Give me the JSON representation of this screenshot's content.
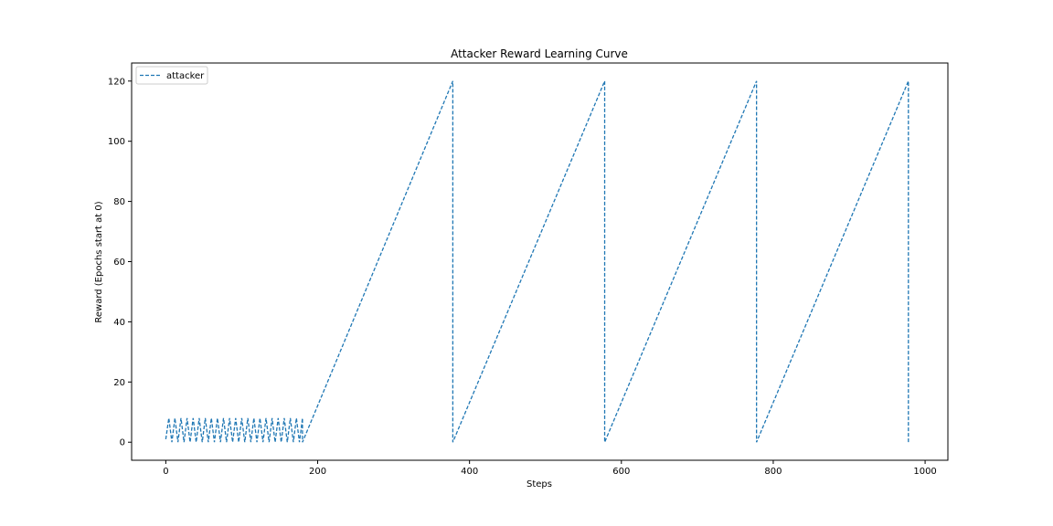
{
  "chart_data": {
    "type": "line",
    "title": "Attacker Reward Learning Curve",
    "xlabel": "Steps",
    "ylabel": "Reward (Epochs start at 0)",
    "xlim": [
      -45,
      1030
    ],
    "ylim": [
      -6,
      126
    ],
    "xticks": [
      0,
      200,
      400,
      600,
      800,
      1000
    ],
    "yticks": [
      0,
      20,
      40,
      60,
      80,
      100,
      120
    ],
    "grid": false,
    "legend": {
      "placement": "top-left"
    },
    "series": [
      {
        "name": "attacker",
        "color": "#1f77b4",
        "linestyle": "dashed",
        "sawtooth_segments": [
          {
            "x_start": 0,
            "x_end": 180,
            "period": 8,
            "min": 0,
            "max": 8,
            "start_y": 1
          },
          {
            "x_start": 180,
            "x_end": 378,
            "min": 0,
            "max": 120
          },
          {
            "x_start": 378,
            "x_end": 578,
            "min": 0,
            "max": 120
          },
          {
            "x_start": 578,
            "x_end": 778,
            "min": 0,
            "max": 120
          },
          {
            "x_start": 778,
            "x_end": 978,
            "min": 0,
            "max": 120
          }
        ]
      }
    ]
  }
}
